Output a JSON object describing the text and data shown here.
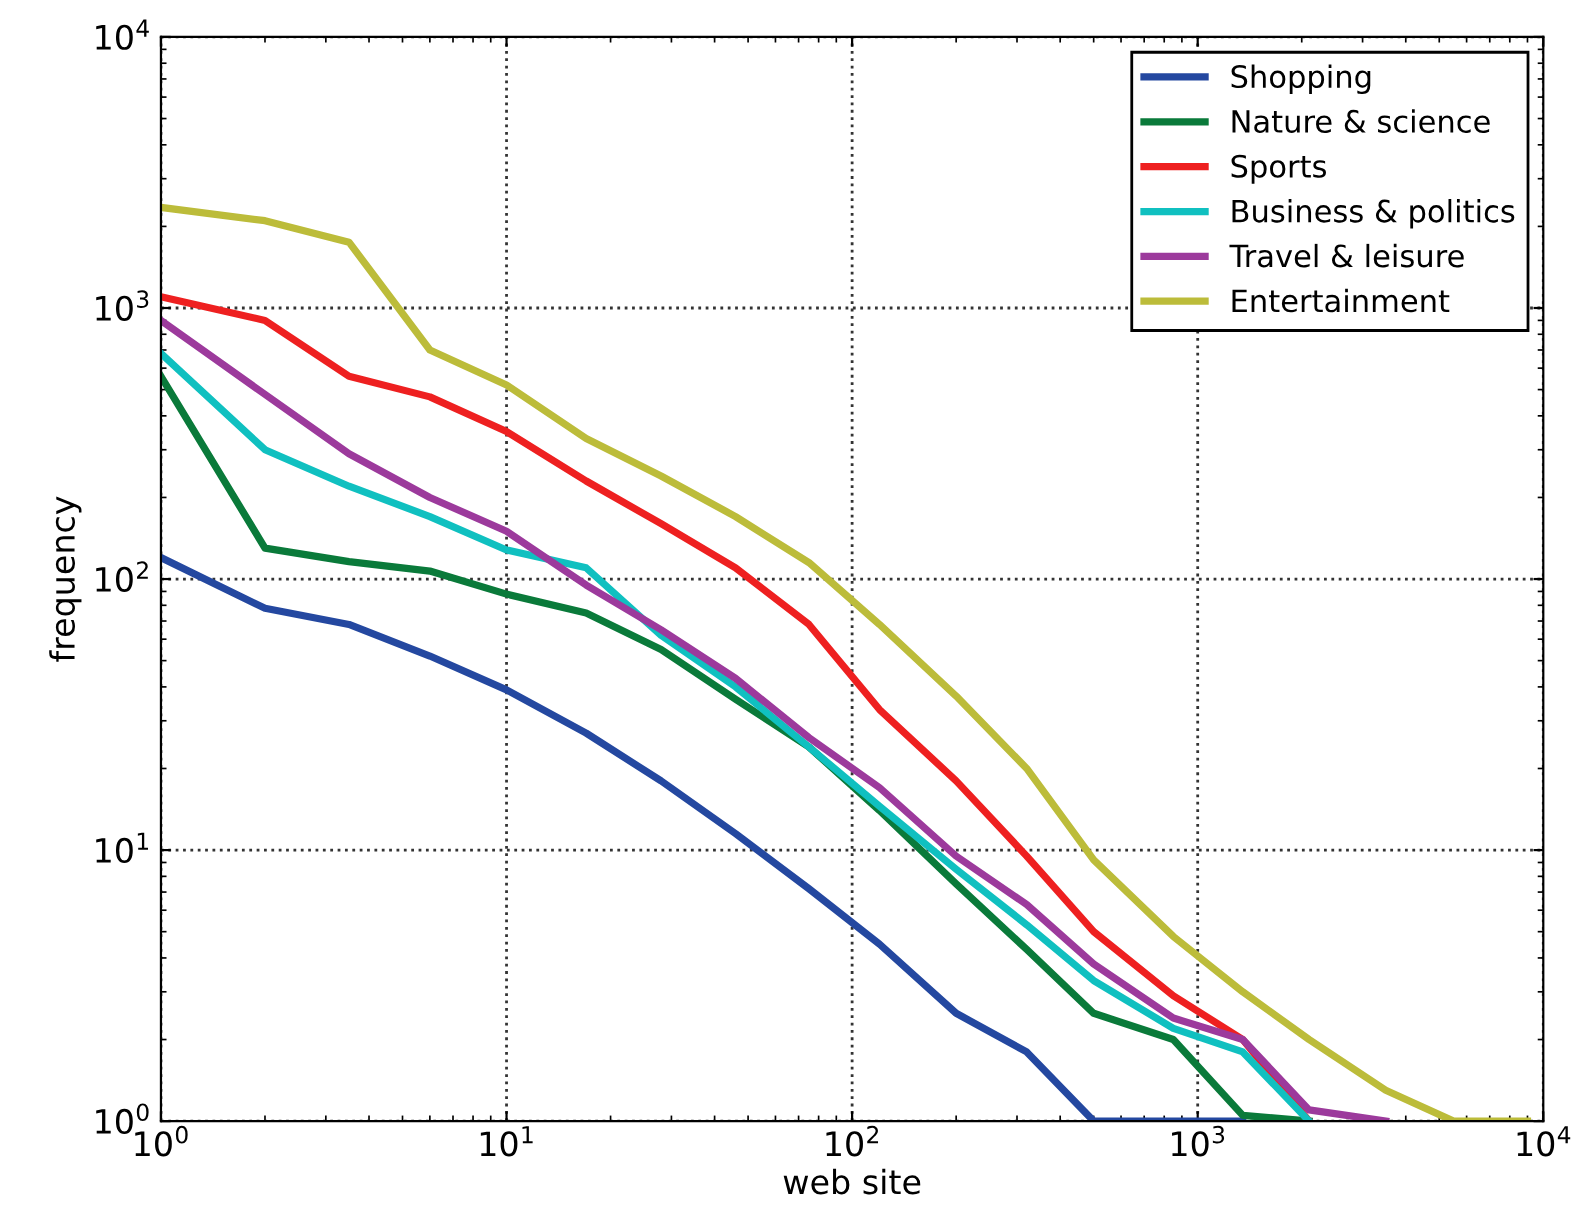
{
  "chart_data": {
    "type": "line",
    "xlabel": "web site",
    "ylabel": "frequency",
    "log": "xy",
    "grid": true,
    "legend": "top right",
    "line_style": "solid",
    "x": [
      1,
      2,
      3.5,
      6,
      10,
      17,
      28,
      46,
      75,
      120,
      200,
      320,
      500,
      850,
      1350,
      2100,
      3500,
      5500,
      9000
    ],
    "xlim": [
      1,
      10000
    ],
    "ylim": [
      1,
      10000
    ],
    "xticks": [
      {
        "value": 1,
        "label": "10$^{0}$"
      },
      {
        "value": 10,
        "label": "10$^{1}$"
      },
      {
        "value": 100,
        "label": "10$^{2}$"
      },
      {
        "value": 1000,
        "label": "10$^{3}$"
      },
      {
        "value": 10000,
        "label": "10$^{4}$"
      }
    ],
    "yticks": [
      {
        "value": 1,
        "label": "10$^{0}$"
      },
      {
        "value": 10,
        "label": "10$^{1}$"
      },
      {
        "value": 100,
        "label": "10$^{2}$"
      },
      {
        "value": 1000,
        "label": "10$^{3}$"
      },
      {
        "value": 10000,
        "label": "10$^{4}$"
      }
    ],
    "series": [
      {
        "name": "Shopping",
        "color": "#2448a0",
        "values": [
          120,
          78,
          68,
          52,
          39,
          27,
          18,
          11.5,
          7.2,
          4.5,
          2.5,
          1.8,
          1,
          1,
          1,
          null,
          null,
          null,
          null
        ]
      },
      {
        "name": "Nature & science",
        "color": "#0a7a3a",
        "values": [
          560,
          130,
          116,
          107,
          88,
          75,
          55,
          36,
          24,
          14,
          7.5,
          4.3,
          2.5,
          2,
          1.05,
          1,
          null,
          null,
          null
        ]
      },
      {
        "name": "Sports",
        "color": "#ee2020",
        "values": [
          1100,
          900,
          560,
          470,
          350,
          230,
          160,
          110,
          68,
          33,
          18,
          9.5,
          5,
          2.9,
          2,
          1,
          null,
          null,
          null
        ]
      },
      {
        "name": "Business & politics",
        "color": "#10c0c0",
        "values": [
          680,
          300,
          220,
          170,
          128,
          110,
          62,
          40,
          24,
          14.5,
          8.5,
          5.3,
          3.3,
          2.2,
          1.8,
          1,
          null,
          null,
          null
        ]
      },
      {
        "name": "Travel & leisure",
        "color": "#9c3a9c",
        "values": [
          900,
          480,
          290,
          200,
          150,
          95,
          65,
          43,
          26,
          17,
          9.5,
          6.3,
          3.8,
          2.4,
          2,
          1.1,
          1,
          null,
          null
        ]
      },
      {
        "name": "Entertainment",
        "color": "#bcbc3a",
        "values": [
          2350,
          2100,
          1750,
          700,
          520,
          330,
          240,
          170,
          115,
          68,
          37,
          20,
          9.2,
          4.8,
          3,
          2,
          1.3,
          1,
          1
        ]
      }
    ]
  }
}
